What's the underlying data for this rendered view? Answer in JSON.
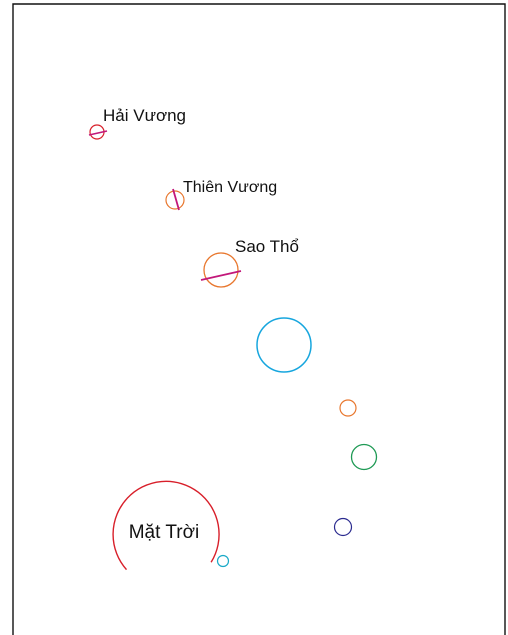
{
  "labels": {
    "neptune": "Hải Vương",
    "uranus": "Thiên Vương",
    "saturn": "Sao Thổ",
    "sun": "Mặt Trời"
  },
  "bodies": [
    {
      "id": "sun",
      "color": "#d81f2a",
      "gap": "bottom-left"
    },
    {
      "id": "mercury",
      "color": "#19a9c7"
    },
    {
      "id": "venus",
      "color": "#2b2b8f"
    },
    {
      "id": "earth",
      "color": "#1f9a55"
    },
    {
      "id": "mars",
      "color": "#e8772e"
    },
    {
      "id": "jupiter",
      "color": "#17a6de"
    },
    {
      "id": "saturn",
      "color": "#e8772e",
      "ring_color": "#c2187a"
    },
    {
      "id": "uranus",
      "color": "#e8772e",
      "ring_color": "#c2187a"
    },
    {
      "id": "neptune",
      "color": "#d81f2a",
      "ring_color": "#c2187a"
    }
  ],
  "frame": {
    "border_color": "#111111"
  }
}
